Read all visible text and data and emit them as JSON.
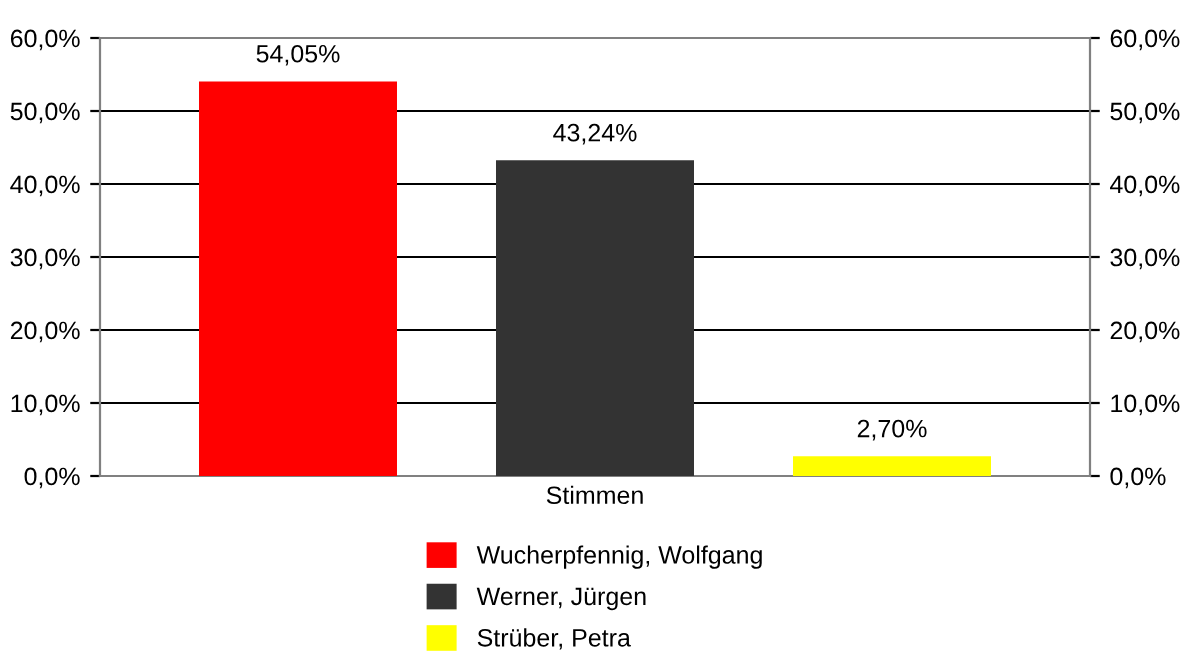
{
  "chart_data": {
    "type": "bar",
    "categories": [
      "Stimmen"
    ],
    "series": [
      {
        "name": "Wucherpfennig, Wolfgang",
        "color": "#ff0000",
        "values": [
          54.05
        ],
        "value_labels": [
          "54,05%"
        ]
      },
      {
        "name": "Werner, Jürgen",
        "color": "#333333",
        "values": [
          43.24
        ],
        "value_labels": [
          "43,24%"
        ]
      },
      {
        "name": "Strüber, Petra",
        "color": "#ffff00",
        "values": [
          2.7
        ],
        "value_labels": [
          "2,70%"
        ]
      }
    ],
    "ylim": [
      0,
      60
    ],
    "yticks": [
      {
        "value": 0,
        "label": "0,0%"
      },
      {
        "value": 10,
        "label": "10,0%"
      },
      {
        "value": 20,
        "label": "20,0%"
      },
      {
        "value": 30,
        "label": "30,0%"
      },
      {
        "value": 40,
        "label": "40,0%"
      },
      {
        "value": 50,
        "label": "50,0%"
      },
      {
        "value": 60,
        "label": "60,0%"
      }
    ],
    "grid": "y",
    "legend": "bottom"
  }
}
